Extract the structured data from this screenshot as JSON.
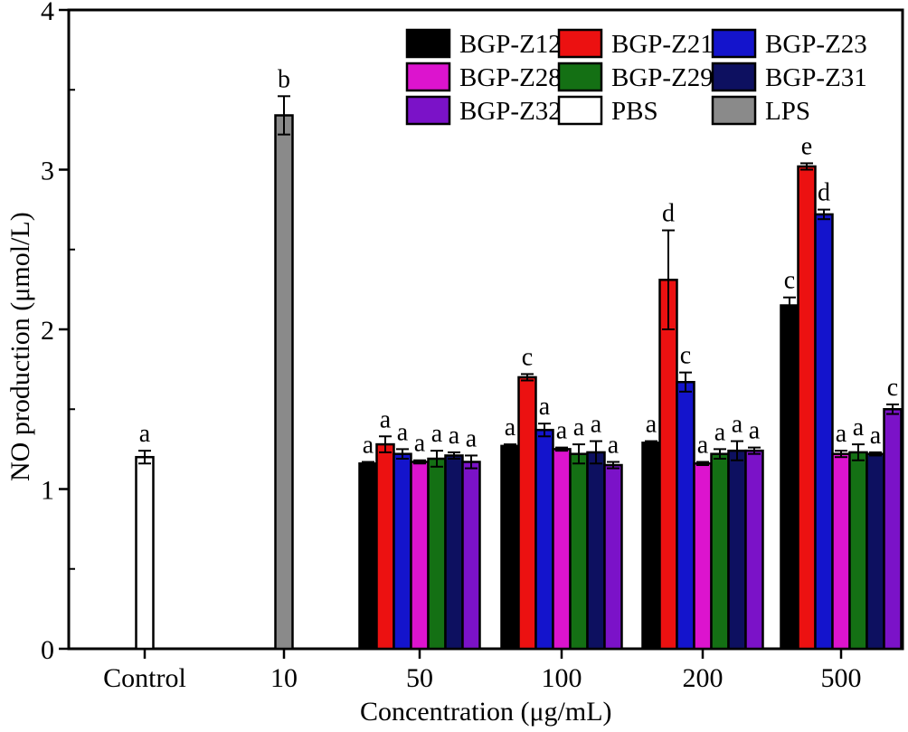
{
  "chart_data": {
    "type": "bar",
    "title": "",
    "xlabel": "Concentration (μg/mL)",
    "ylabel": "NO production (μmol/L)",
    "ylim": [
      0,
      4
    ],
    "yticks": [
      0,
      1,
      2,
      3,
      4
    ],
    "minor_tick_step": 0.5,
    "grid": false,
    "legend_position": "top-right-inside",
    "series": [
      {
        "name": "BGP-Z12",
        "color": "#000000"
      },
      {
        "name": "BGP-Z21",
        "color": "#EC1111"
      },
      {
        "name": "BGP-Z23",
        "color": "#1414CC"
      },
      {
        "name": "BGP-Z28",
        "color": "#DC14CE"
      },
      {
        "name": "BGP-Z29",
        "color": "#147014"
      },
      {
        "name": "BGP-Z31",
        "color": "#0D1060"
      },
      {
        "name": "BGP-Z32",
        "color": "#7B12C8"
      },
      {
        "name": "PBS",
        "color": "#FFFFFF"
      },
      {
        "name": "LPS",
        "color": "#8A8A8A"
      }
    ],
    "categories": [
      "Control",
      "10",
      "50",
      "100",
      "200",
      "500"
    ],
    "groups": [
      {
        "label": "Control",
        "bars": [
          {
            "series": "PBS",
            "value": 1.2,
            "error": 0.04,
            "letter": "a"
          }
        ]
      },
      {
        "label": "10",
        "bars": [
          {
            "series": "LPS",
            "value": 3.34,
            "error": 0.12,
            "letter": "b"
          }
        ]
      },
      {
        "label": "50",
        "bars": [
          {
            "series": "BGP-Z12",
            "value": 1.16,
            "error": 0.01,
            "letter": "a"
          },
          {
            "series": "BGP-Z21",
            "value": 1.28,
            "error": 0.05,
            "letter": "a"
          },
          {
            "series": "BGP-Z23",
            "value": 1.22,
            "error": 0.03,
            "letter": "a"
          },
          {
            "series": "BGP-Z28",
            "value": 1.17,
            "error": 0.01,
            "letter": "a"
          },
          {
            "series": "BGP-Z29",
            "value": 1.19,
            "error": 0.05,
            "letter": "a"
          },
          {
            "series": "BGP-Z31",
            "value": 1.21,
            "error": 0.02,
            "letter": "a"
          },
          {
            "series": "BGP-Z32",
            "value": 1.17,
            "error": 0.04,
            "letter": "a"
          }
        ]
      },
      {
        "label": "100",
        "bars": [
          {
            "series": "BGP-Z12",
            "value": 1.27,
            "error": 0.01,
            "letter": "a"
          },
          {
            "series": "BGP-Z21",
            "value": 1.7,
            "error": 0.02,
            "letter": "c"
          },
          {
            "series": "BGP-Z23",
            "value": 1.37,
            "error": 0.04,
            "letter": "a"
          },
          {
            "series": "BGP-Z28",
            "value": 1.25,
            "error": 0.01,
            "letter": "a"
          },
          {
            "series": "BGP-Z29",
            "value": 1.22,
            "error": 0.06,
            "letter": "a"
          },
          {
            "series": "BGP-Z31",
            "value": 1.23,
            "error": 0.07,
            "letter": "a"
          },
          {
            "series": "BGP-Z32",
            "value": 1.15,
            "error": 0.02,
            "letter": "a"
          }
        ]
      },
      {
        "label": "200",
        "bars": [
          {
            "series": "BGP-Z12",
            "value": 1.29,
            "error": 0.01,
            "letter": "a"
          },
          {
            "series": "BGP-Z21",
            "value": 2.31,
            "error": 0.31,
            "letter": "d"
          },
          {
            "series": "BGP-Z23",
            "value": 1.67,
            "error": 0.06,
            "letter": "c"
          },
          {
            "series": "BGP-Z28",
            "value": 1.16,
            "error": 0.01,
            "letter": "a"
          },
          {
            "series": "BGP-Z29",
            "value": 1.22,
            "error": 0.03,
            "letter": "a"
          },
          {
            "series": "BGP-Z31",
            "value": 1.24,
            "error": 0.06,
            "letter": "a"
          },
          {
            "series": "BGP-Z32",
            "value": 1.24,
            "error": 0.02,
            "letter": "a"
          }
        ]
      },
      {
        "label": "500",
        "bars": [
          {
            "series": "BGP-Z12",
            "value": 2.15,
            "error": 0.05,
            "letter": "c"
          },
          {
            "series": "BGP-Z21",
            "value": 3.02,
            "error": 0.02,
            "letter": "e"
          },
          {
            "series": "BGP-Z23",
            "value": 2.72,
            "error": 0.03,
            "letter": "d"
          },
          {
            "series": "BGP-Z28",
            "value": 1.22,
            "error": 0.02,
            "letter": "a"
          },
          {
            "series": "BGP-Z29",
            "value": 1.23,
            "error": 0.05,
            "letter": "a"
          },
          {
            "series": "BGP-Z31",
            "value": 1.22,
            "error": 0.01,
            "letter": "a"
          },
          {
            "series": "BGP-Z32",
            "value": 1.5,
            "error": 0.03,
            "letter": "c"
          }
        ]
      }
    ]
  }
}
